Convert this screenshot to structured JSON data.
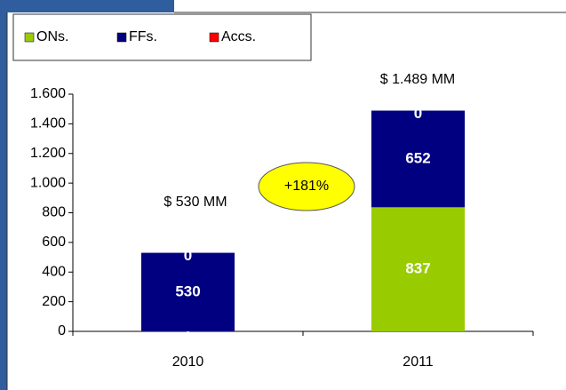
{
  "chart_data": {
    "type": "stacked_bar",
    "categories": [
      "2010",
      "2011"
    ],
    "series": [
      {
        "name": "ONs.",
        "color": "#99cc00",
        "values": [
          0,
          837
        ]
      },
      {
        "name": "FFs.",
        "color": "#000080",
        "values": [
          530,
          652
        ]
      },
      {
        "name": "Accs.",
        "color": "#ff0000",
        "values": [
          0,
          0
        ]
      }
    ],
    "ylim": [
      0,
      1600
    ],
    "yticks": [
      0,
      {
        "value": 200,
        "label": "200"
      },
      {
        "value": 400,
        "label": "400"
      },
      {
        "value": 600,
        "label": "600"
      },
      {
        "value": 800,
        "label": "800"
      },
      {
        "value": 1000,
        "label": "1.000"
      },
      {
        "value": 1200,
        "label": "1.200"
      },
      {
        "value": 1400,
        "label": "1.400"
      },
      {
        "value": 1600,
        "label": "1.600"
      }
    ],
    "legend": "top-left",
    "annotations": [
      "$ 530 MM",
      "$ 1.489 MM",
      "+181%"
    ]
  }
}
